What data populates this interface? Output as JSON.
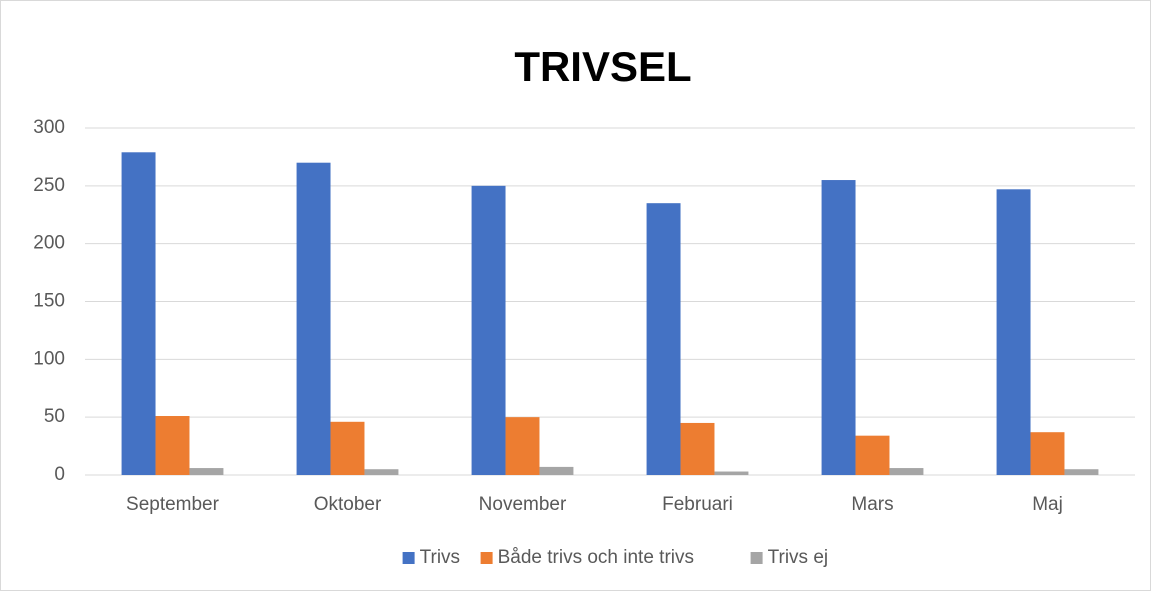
{
  "chart_data": {
    "type": "bar",
    "title": "TRIVSEL",
    "categories": [
      "September",
      "Oktober",
      "November",
      "Februari",
      "Mars",
      "Maj"
    ],
    "series": [
      {
        "name": "Trivs",
        "color": "#4472c4",
        "values": [
          279,
          270,
          250,
          235,
          255,
          247
        ]
      },
      {
        "name": "Både trivs och inte trivs",
        "color": "#ed7d31",
        "values": [
          51,
          46,
          50,
          45,
          34,
          37
        ]
      },
      {
        "name": "Trivs ej",
        "color": "#a5a5a5",
        "values": [
          6,
          5,
          7,
          3,
          6,
          5
        ]
      }
    ],
    "ylim": [
      0,
      300
    ],
    "yticks": [
      0,
      50,
      100,
      150,
      200,
      250,
      300
    ],
    "grid": true,
    "legend": "bottom"
  }
}
